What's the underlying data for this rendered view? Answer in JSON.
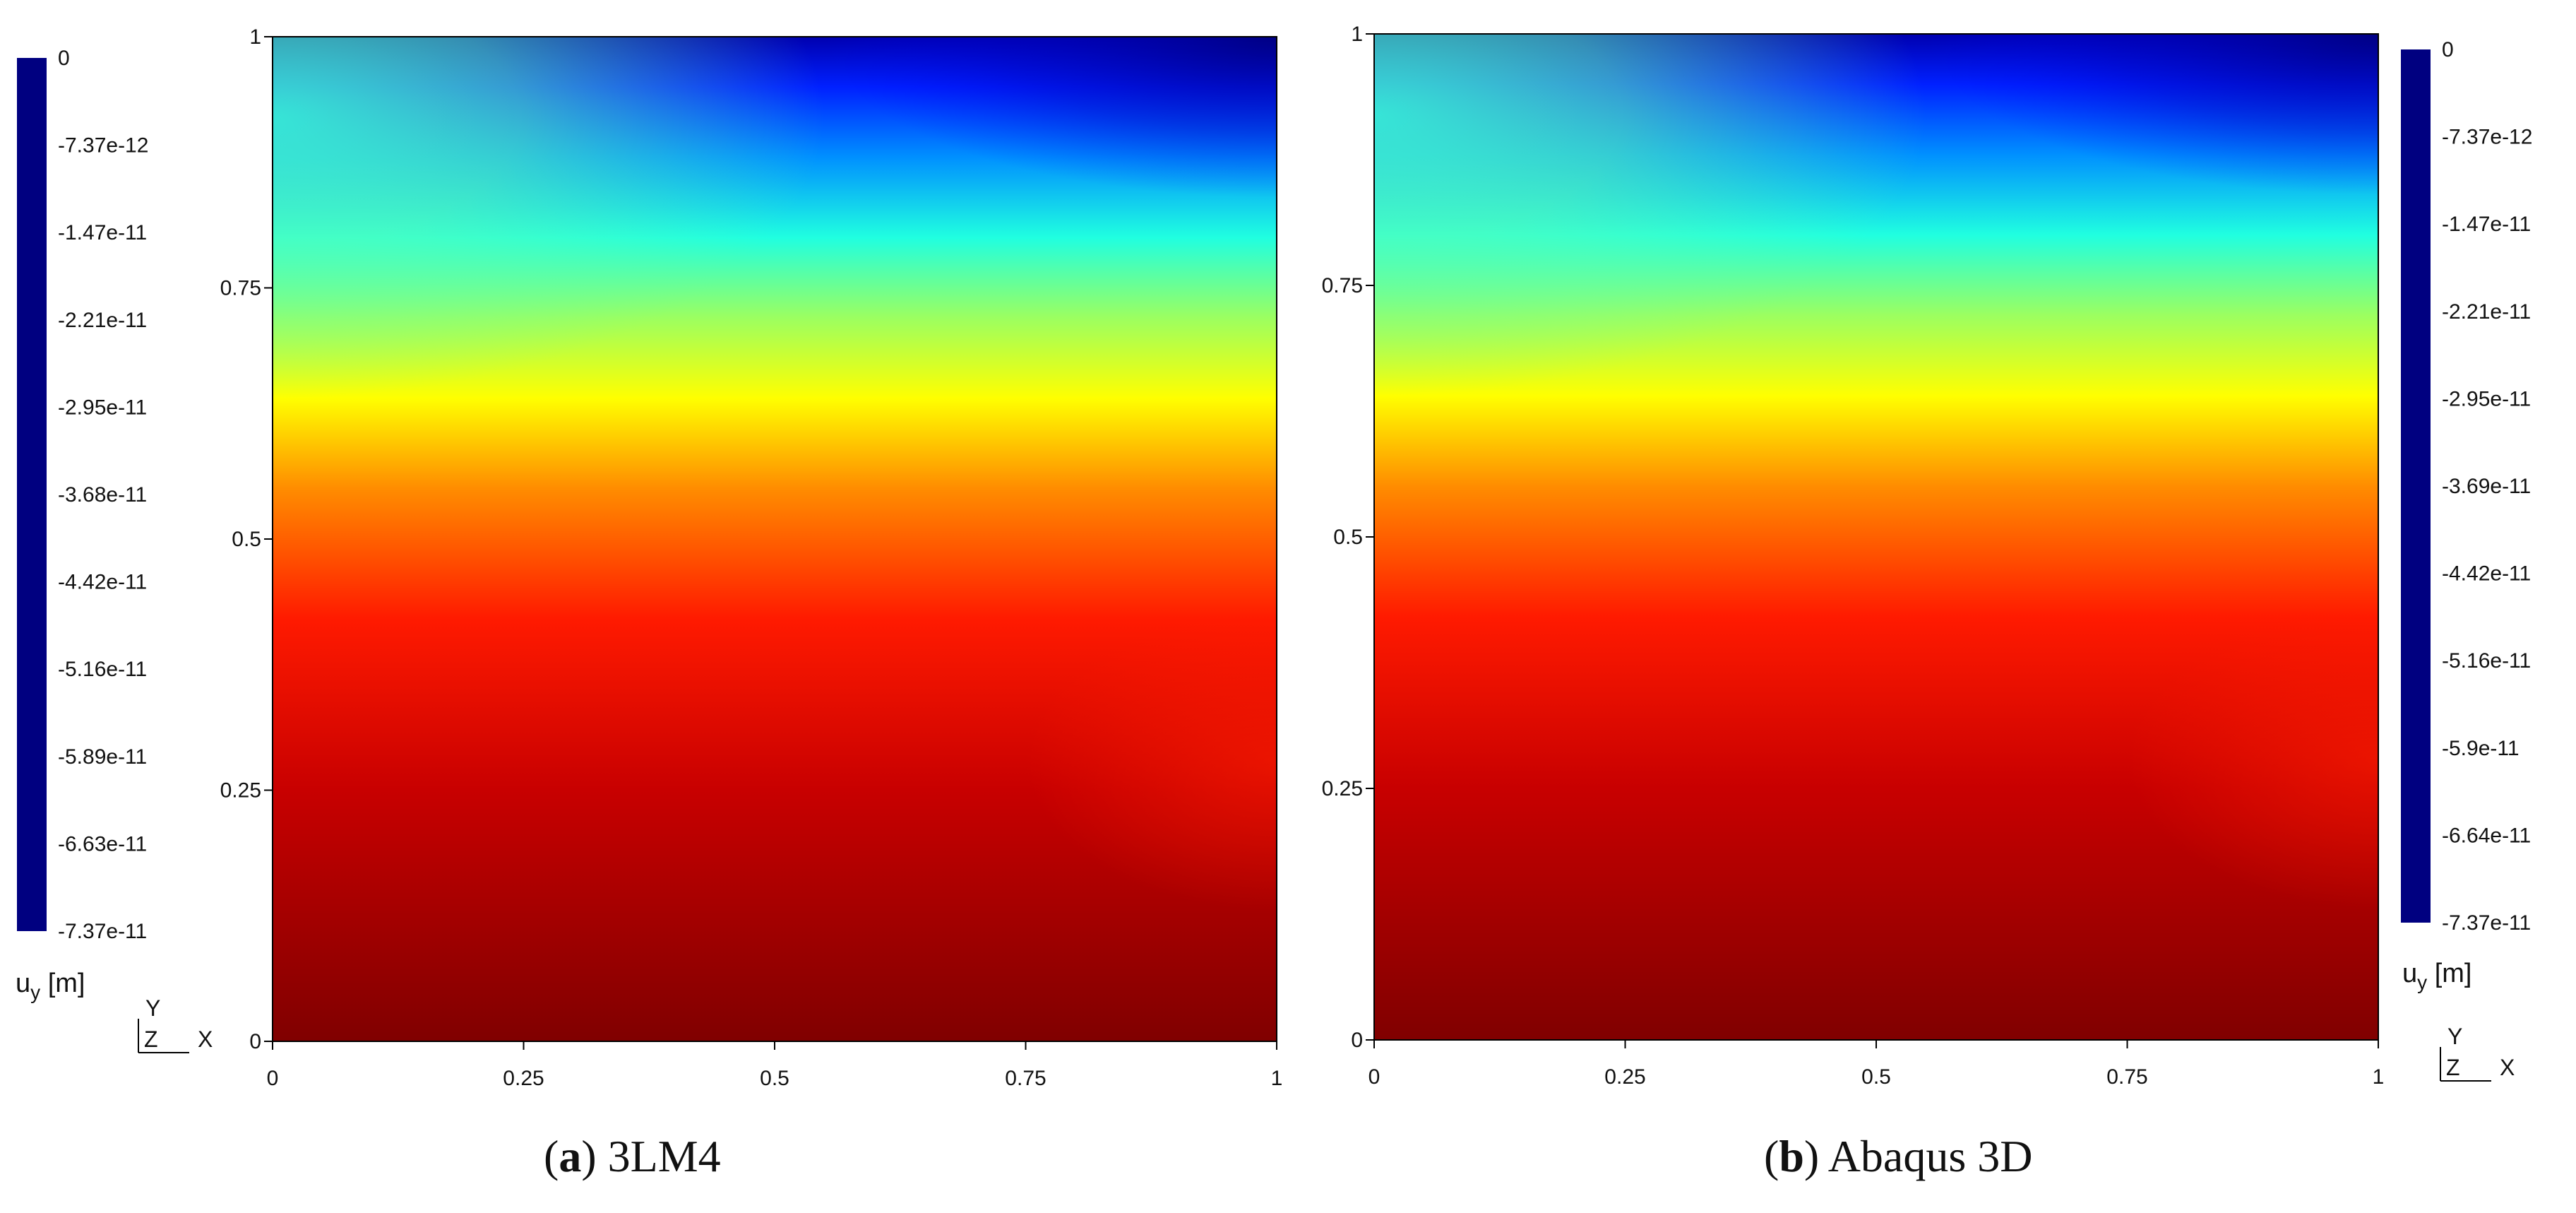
{
  "colors": {
    "colormap": [
      "#000080",
      "#0000ff",
      "#0080ff",
      "#00ffff",
      "#80ff80",
      "#ffff00",
      "#ff8000",
      "#ff0000",
      "#800000"
    ],
    "background": "#ffffff",
    "axis": "#000000"
  },
  "chart_data": [
    {
      "type": "heatmap",
      "panel": "a",
      "caption_letter": "a",
      "caption_text": "3LM4",
      "x_ticks": [
        "0",
        "0.25",
        "0.5",
        "0.75",
        "1"
      ],
      "y_ticks": [
        "0",
        "0.25",
        "0.5",
        "0.75",
        "1"
      ],
      "xlim": [
        0,
        1
      ],
      "ylim": [
        0,
        1
      ],
      "colorbar": {
        "label_main": "u",
        "label_sub": "y",
        "label_unit": "[m]",
        "position": "left",
        "ticks": [
          "0",
          "-7.37e-12",
          "-1.47e-11",
          "-2.21e-11",
          "-2.95e-11",
          "-3.68e-11",
          "-4.42e-11",
          "-5.16e-11",
          "-5.89e-11",
          "-6.63e-11",
          "-7.37e-11"
        ],
        "range": [
          -7.37e-11,
          0
        ]
      },
      "field": {
        "quantity": "u_y",
        "value_at_bottom": 0,
        "value_at_top_right": -7.37e-11,
        "value_at_top_left": -4.4e-11
      },
      "triad": {
        "y": "Y",
        "z": "Z",
        "x": "X"
      }
    },
    {
      "type": "heatmap",
      "panel": "b",
      "caption_letter": "b",
      "caption_text": "Abaqus 3D",
      "x_ticks": [
        "0",
        "0.25",
        "0.5",
        "0.75",
        "1"
      ],
      "y_ticks": [
        "0",
        "0.25",
        "0.5",
        "0.75",
        "1"
      ],
      "xlim": [
        0,
        1
      ],
      "ylim": [
        0,
        1
      ],
      "colorbar": {
        "label_main": "u",
        "label_sub": "y",
        "label_unit": "[m]",
        "position": "right",
        "ticks": [
          "0",
          "-7.37e-12",
          "-1.47e-11",
          "-2.21e-11",
          "-2.95e-11",
          "-3.69e-11",
          "-4.42e-11",
          "-5.16e-11",
          "-5.9e-11",
          "-6.64e-11",
          "-7.37e-11"
        ],
        "range": [
          -7.37e-11,
          0
        ]
      },
      "field": {
        "quantity": "u_y",
        "value_at_bottom": 0,
        "value_at_top_right": -7.37e-11,
        "value_at_top_left": -4.4e-11
      },
      "triad": {
        "y": "Y",
        "z": "Z",
        "x": "X"
      }
    }
  ]
}
